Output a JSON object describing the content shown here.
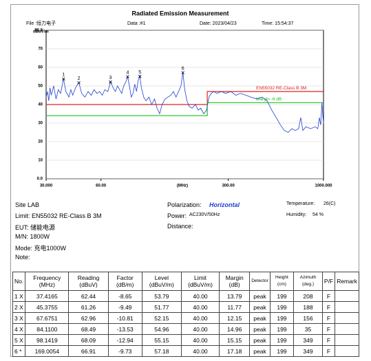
{
  "header": {
    "title": "Radiated Emission Measurement",
    "file": "File :恒力电子",
    "data": "Data :#1",
    "date": "Date: 2023/04/23",
    "time": "Time: 15:54:37"
  },
  "chart_data": {
    "type": "line",
    "y_label": "dBuV/m",
    "x_label": "(MHz)",
    "log_x": true,
    "grid": true,
    "xlim": [
      30,
      1000
    ],
    "ylim": [
      0,
      80
    ],
    "xticks": [
      {
        "value": 30,
        "label": "30.000"
      },
      {
        "value": 60,
        "label": "60.00"
      },
      {
        "value": 300,
        "label": "300.00"
      },
      {
        "value": 1000,
        "label": "1000.000"
      }
    ],
    "yticks": [
      {
        "value": 0,
        "label": "0.0"
      },
      10,
      20,
      30,
      40,
      50,
      60,
      70,
      {
        "value": 80,
        "label": "80.0"
      }
    ],
    "color": "#1f3fd0",
    "x": [
      30,
      30.5,
      31,
      31.5,
      32,
      33,
      34,
      35,
      36,
      37.4,
      38.5,
      40,
      41,
      42,
      43.5,
      45.4,
      47,
      49,
      51,
      53,
      55,
      57,
      59,
      61,
      63,
      65.5,
      67.7,
      70,
      72,
      74,
      76,
      78,
      80,
      82,
      84.1,
      86,
      88,
      90,
      92,
      94,
      96,
      98.1,
      100,
      103,
      106,
      110,
      114,
      118,
      122,
      126,
      130,
      135,
      140,
      145,
      150,
      155,
      160,
      165,
      169,
      173,
      178,
      183,
      190,
      198,
      205,
      212,
      220,
      228,
      235,
      242,
      250,
      260,
      275,
      290,
      310,
      330,
      350,
      375,
      400,
      430,
      460,
      490,
      520,
      550,
      580,
      610,
      640,
      670,
      700,
      730,
      750,
      770,
      800,
      850,
      900,
      930,
      950,
      965,
      980,
      990,
      1000
    ],
    "values": [
      44,
      47,
      42,
      49,
      45,
      50,
      43,
      48,
      46,
      53.8,
      47,
      44,
      48,
      45,
      49,
      51.8,
      46,
      44,
      47,
      45,
      48,
      46,
      47,
      45,
      48,
      47,
      52.2,
      49,
      47,
      50,
      48,
      46,
      50,
      52,
      55,
      50,
      44,
      46,
      51,
      47,
      53,
      55.2,
      49,
      44,
      42,
      44,
      40,
      43,
      38,
      35,
      40,
      43,
      44,
      45,
      47,
      44,
      47,
      50,
      57.2,
      48,
      42,
      39,
      38,
      40,
      37,
      38,
      35,
      37,
      44,
      46,
      47,
      46,
      47,
      46,
      47,
      45,
      46,
      45,
      44,
      43,
      44,
      42,
      37,
      33,
      29,
      26,
      25,
      27,
      26,
      27,
      33,
      26,
      28,
      27,
      28,
      27,
      33,
      29,
      41,
      35,
      30
    ],
    "limits": [
      {
        "name": "EN55032 RE-Class B 3M",
        "color": "#e02020",
        "x": [
          30,
          230,
          230,
          1000
        ],
        "values": [
          40,
          40,
          47,
          47
        ]
      },
      {
        "name": "Margin -6 dB",
        "color": "#22c022",
        "x": [
          30,
          230,
          230,
          1000
        ],
        "values": [
          34,
          34,
          41,
          41
        ]
      }
    ],
    "markers": [
      {
        "label": "1",
        "x": 37.4165,
        "y": 53.79
      },
      {
        "label": "2",
        "x": 45.3755,
        "y": 51.77
      },
      {
        "label": "3",
        "x": 67.6751,
        "y": 52.15
      },
      {
        "label": "4",
        "x": 84.11,
        "y": 54.96
      },
      {
        "label": "5",
        "x": 98.1419,
        "y": 55.15
      },
      {
        "label": "6",
        "x": 169.0054,
        "y": 57.18
      }
    ]
  },
  "info": {
    "site": "Site LAB",
    "limit": "Limit: EN55032 RE-Class B 3M",
    "eut": "EUT: 储能电源",
    "mn": "M/N: 1800W",
    "mode": "Mode: 充电1000W",
    "note": "Note:",
    "polarization_label": "Polarization:",
    "polarization": "Horizontal",
    "power_label": "Power:",
    "power": "AC230V/50Hz",
    "distance": "Distance:",
    "temperature_label": "Temperature:",
    "temperature": "26(C)",
    "humidity_label": "Humidity:",
    "humidity": "54 %"
  },
  "table": {
    "headers": [
      "No.",
      "Frequency (MHz)",
      "Reading (dBuV)",
      "Factor (dB/m)",
      "Level (dBuV/m)",
      "Limit (dBuV/m)",
      "Margin (dB)",
      "Detector",
      "Height (cm)",
      "Azimuth (deg.)",
      "P/F",
      "Remark"
    ],
    "rows": [
      [
        "1 X",
        "37.4165",
        "62.44",
        "-8.65",
        "53.79",
        "40.00",
        "13.79",
        "peak",
        "199",
        "208",
        "F",
        ""
      ],
      [
        "2 X",
        "45.3755",
        "61.26",
        "-9.49",
        "51.77",
        "40.00",
        "11.77",
        "peak",
        "199",
        "188",
        "F",
        ""
      ],
      [
        "3 X",
        "67.6751",
        "62.96",
        "-10.81",
        "52.15",
        "40.00",
        "12.15",
        "peak",
        "199",
        "156",
        "F",
        ""
      ],
      [
        "4 X",
        "84.1100",
        "68.49",
        "-13.53",
        "54.96",
        "40.00",
        "14.96",
        "peak",
        "199",
        "35",
        "F",
        ""
      ],
      [
        "5 X",
        "98.1419",
        "68.09",
        "-12.94",
        "55.15",
        "40.00",
        "15.15",
        "peak",
        "199",
        "349",
        "F",
        ""
      ],
      [
        "6 *",
        "169.0054",
        "66.91",
        "-9.73",
        "57.18",
        "40.00",
        "17.18",
        "peak",
        "199",
        "349",
        "F",
        ""
      ]
    ]
  }
}
